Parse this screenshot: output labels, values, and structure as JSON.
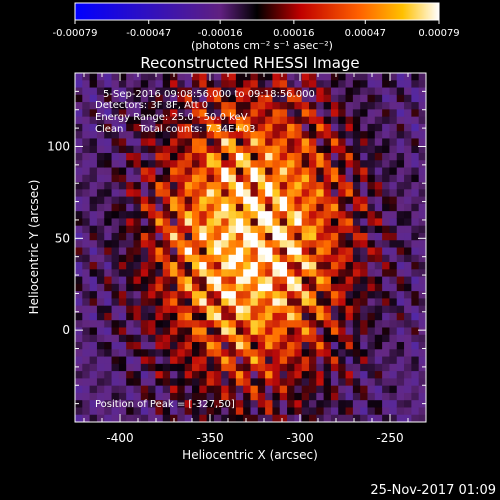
{
  "chart_data": {
    "type": "heatmap",
    "title": "Reconstructed RHESSI Image",
    "xlabel": "Heliocentric X (arcsec)",
    "ylabel": "Heliocentric Y (arcsec)",
    "xlim": [
      -425,
      -230
    ],
    "ylim": [
      -50,
      140
    ],
    "x_ticks": [
      -400,
      -350,
      -300,
      -250
    ],
    "y_ticks": [
      0,
      50,
      100
    ],
    "colorbar": {
      "ticks": [
        -0.00079,
        -0.00047,
        -0.00016,
        0.00016,
        0.00047,
        0.00079
      ],
      "tick_labels": [
        "-0.00079",
        "-0.00047",
        "-0.00016",
        "0.00016",
        "0.00047",
        "0.00079"
      ],
      "min": -0.00079,
      "max": 0.00079,
      "unit_label": "(photons cm⁻² s⁻¹ asec⁻²)"
    },
    "peak": {
      "x": -327,
      "y": 50
    },
    "annotations": [
      "5-Sep-2016 09:08:56.000 to 09:18:56.000",
      "Detectors: 3F 8F, Att 0",
      "Energy Range: 25.0 - 50.0 keV",
      "Clean     Total counts: 7.34E+03"
    ],
    "peak_label": "Position of Peak = [-327,50]",
    "footer": "25-Nov-2017 01:09"
  }
}
